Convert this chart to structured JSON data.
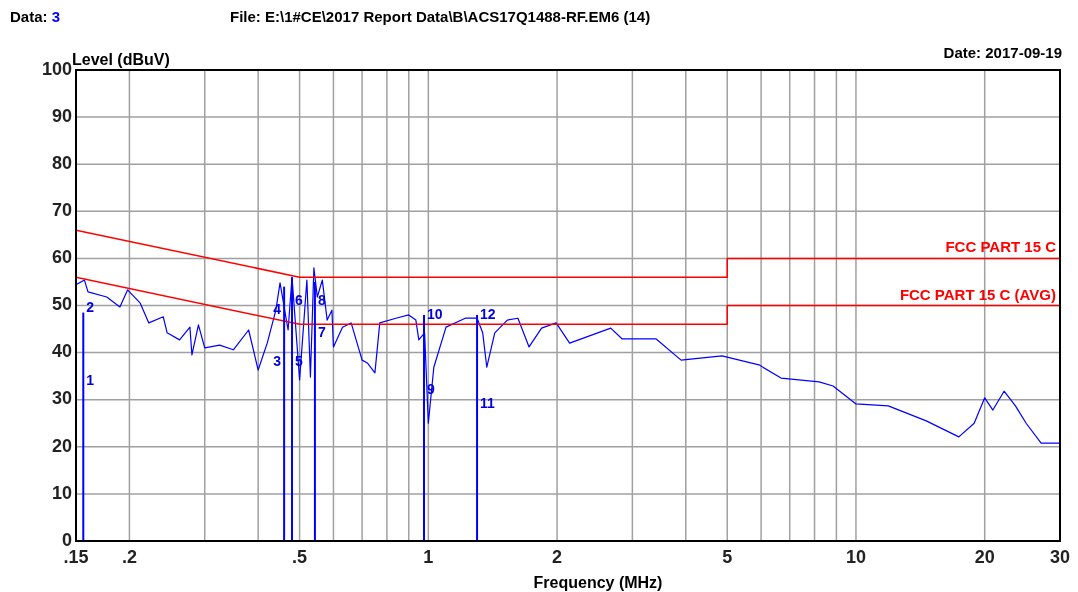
{
  "chart_data": {
    "type": "line",
    "title": "File: E:\\1#CE\\2017 Report Data\\B\\ACS17Q1488-RF.EM6  (14)",
    "xlabel": "Frequency (MHz)",
    "ylabel": "Level (dBuV)",
    "annotations": [
      "Data: 3",
      "Date: 2017-09-19",
      {
        "text": "1",
        "x": 0.156,
        "y": 33
      },
      {
        "text": "2",
        "x": 0.156,
        "y": 48.5
      },
      {
        "text": "3",
        "x": 0.46,
        "y": 37
      },
      {
        "text": "4",
        "x": 0.46,
        "y": 48
      },
      {
        "text": "5",
        "x": 0.48,
        "y": 37
      },
      {
        "text": "6",
        "x": 0.48,
        "y": 50
      },
      {
        "text": "7",
        "x": 0.543,
        "y": 43
      },
      {
        "text": "8",
        "x": 0.543,
        "y": 50
      },
      {
        "text": "9",
        "x": 0.977,
        "y": 31
      },
      {
        "text": "10",
        "x": 0.977,
        "y": 47
      },
      {
        "text": "11",
        "x": 1.3,
        "y": 28
      },
      {
        "text": "12",
        "x": 1.3,
        "y": 47
      }
    ],
    "log": "x",
    "xlim": [
      0.15,
      30
    ],
    "ylim": [
      0,
      100
    ],
    "xticks": [
      {
        "value": 0.15,
        "label": ".15"
      },
      {
        "value": 0.2,
        "label": ".2"
      },
      {
        "value": 0.3,
        "label": null
      },
      {
        "value": 0.4,
        "label": null
      },
      {
        "value": 0.5,
        "label": ".5"
      },
      {
        "value": 0.6,
        "label": null
      },
      {
        "value": 0.7,
        "label": null
      },
      {
        "value": 0.8,
        "label": null
      },
      {
        "value": 0.9,
        "label": null
      },
      1,
      2,
      {
        "value": 3,
        "label": null
      },
      {
        "value": 4,
        "label": null
      },
      5,
      {
        "value": 6,
        "label": null
      },
      {
        "value": 7,
        "label": null
      },
      {
        "value": 8,
        "label": null
      },
      {
        "value": 9,
        "label": null
      },
      10,
      20,
      30
    ],
    "yticks": [
      0,
      10,
      20,
      30,
      40,
      50,
      60,
      70,
      80,
      90,
      100
    ],
    "grid": true,
    "series": [
      {
        "color": "#0000ff",
        "x": [
          0.15,
          0.157,
          0.16,
          0.177,
          0.19,
          0.198,
          0.212,
          0.222,
          0.24,
          0.245,
          0.262,
          0.277,
          0.28,
          0.29,
          0.3,
          0.325,
          0.35,
          0.38,
          0.4,
          0.42,
          0.44,
          0.45,
          0.47,
          0.48,
          0.5,
          0.52,
          0.53,
          0.54,
          0.55,
          0.565,
          0.58,
          0.595,
          0.6,
          0.63,
          0.66,
          0.7,
          0.72,
          0.75,
          0.77,
          0.84,
          0.9,
          0.935,
          0.95,
          0.98,
          1.0,
          1.03,
          1.1,
          1.22,
          1.3,
          1.34,
          1.37,
          1.43,
          1.53,
          1.62,
          1.72,
          1.84,
          1.99,
          2.14,
          2.67,
          2.84,
          3.41,
          3.9,
          4.86,
          5.93,
          6.68,
          8.2,
          8.84,
          10,
          11.9,
          14.6,
          17.4,
          18.9,
          20,
          20.9,
          22.2,
          23.6,
          25,
          27.1,
          30
        ],
        "values": [
          54.4,
          55.4,
          52.9,
          51.8,
          49.7,
          53.3,
          50.5,
          46.3,
          47.6,
          44.2,
          42.7,
          45.4,
          39.5,
          45.9,
          41,
          41.6,
          40.6,
          44.8,
          36.3,
          42,
          49,
          54.8,
          44.8,
          56,
          34.2,
          55.4,
          34.8,
          58,
          51.8,
          55.4,
          46.9,
          49,
          41.2,
          45.4,
          46.3,
          38.4,
          37.8,
          35.7,
          46.3,
          47.3,
          48,
          46.9,
          42.7,
          44.2,
          25,
          36.9,
          45.4,
          47.3,
          47.3,
          44.2,
          36.9,
          44.2,
          46.9,
          47.3,
          41.2,
          45.2,
          46.3,
          42,
          45.2,
          42.9,
          42.9,
          38.4,
          39.3,
          37.4,
          34.6,
          33.8,
          32.9,
          29.1,
          28.7,
          25.5,
          22.1,
          25,
          30.4,
          27.8,
          31.8,
          28.7,
          25,
          20.8,
          20.8
        ]
      },
      {
        "name": "FCC PART 15 C",
        "color": "#ff0000",
        "x": [
          0.15,
          0.5,
          5,
          5,
          30
        ],
        "values": [
          66,
          56,
          56,
          60,
          60
        ]
      },
      {
        "name": "FCC PART 15 C (AVG)",
        "color": "#ff0000",
        "x": [
          0.15,
          0.5,
          5,
          5,
          30
        ],
        "values": [
          56,
          46,
          46,
          50,
          50
        ]
      },
      {
        "type": "bar",
        "color": "#0000ff",
        "x": [
          0.156,
          0.46,
          0.48,
          0.543,
          0.977,
          1.3
        ],
        "values": [
          48.5,
          54,
          56,
          55,
          48,
          48
        ]
      }
    ]
  }
}
